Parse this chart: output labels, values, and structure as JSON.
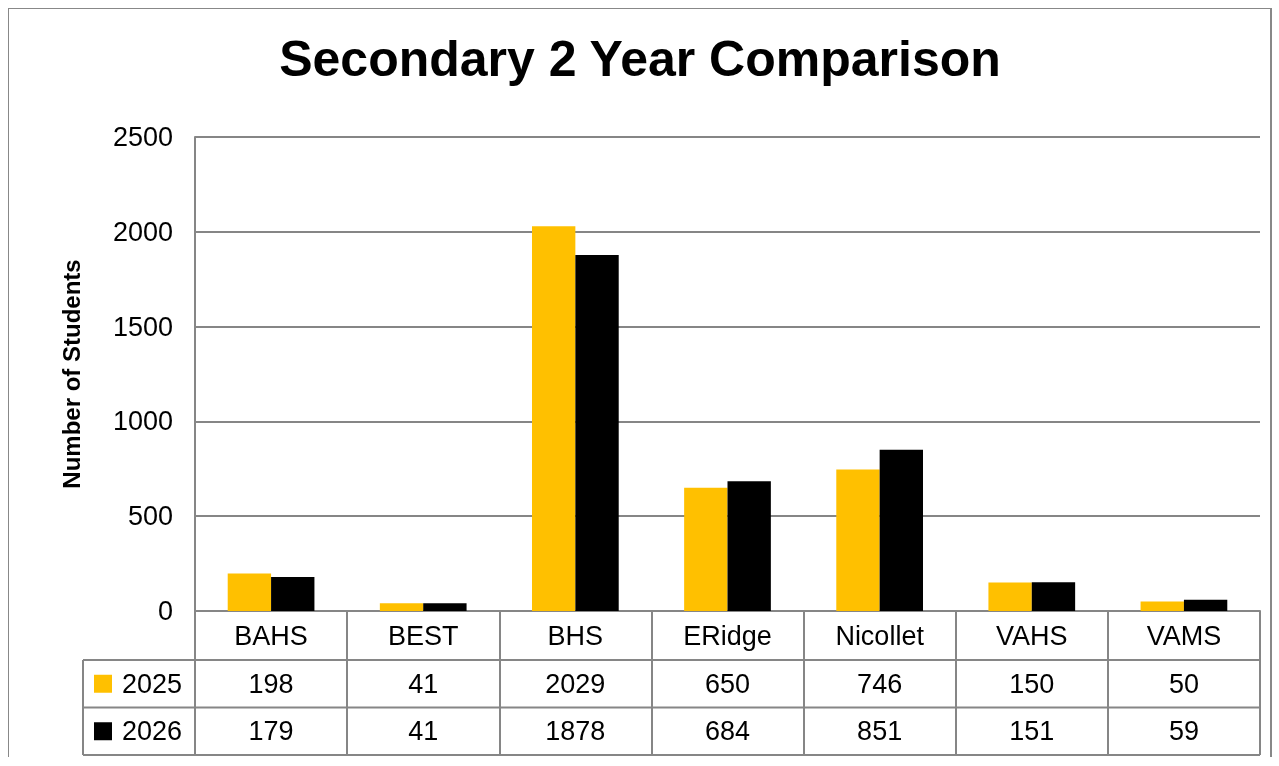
{
  "chart_data": {
    "type": "bar",
    "title": "Secondary 2 Year Comparison",
    "ylabel": "Number of Students",
    "categories": [
      "BAHS",
      "BEST",
      "BHS",
      "ERidge",
      "Nicollet",
      "VAHS",
      "VAMS"
    ],
    "series": [
      {
        "name": "2025",
        "color": "#ffc000",
        "values": [
          198,
          41,
          2029,
          650,
          746,
          150,
          50
        ]
      },
      {
        "name": "2026",
        "color": "#000000",
        "values": [
          179,
          41,
          1878,
          684,
          851,
          151,
          59
        ]
      }
    ],
    "ylim": [
      0,
      2500
    ],
    "yticks": [
      0,
      500,
      1000,
      1500,
      2000,
      2500
    ],
    "grid": "y",
    "legend": "bottom left",
    "data_labels": true
  }
}
